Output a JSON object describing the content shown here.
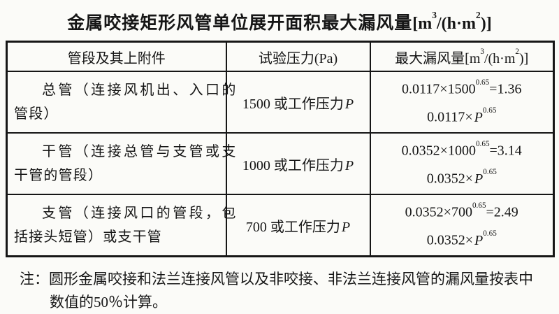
{
  "page": {
    "background": "#fbfbf8",
    "ink": "#161616"
  },
  "title": {
    "text": "金属咬接矩形风管单位展开面积最大漏风量",
    "unit": {
      "open": "[m",
      "sup1": "3",
      "mid": "/(h·m",
      "sup2": "2",
      "close": ")]"
    }
  },
  "table": {
    "headers": {
      "segment": "管段及其上附件",
      "pressure": "试验压力(Pa)",
      "leakage_prefix": "最大漏风量",
      "leakage_unit": {
        "open": "[m",
        "sup1": "3",
        "mid": "/(h·m",
        "sup2": "2",
        "close": ")]"
      }
    },
    "rows": [
      {
        "segment_line1": "总管（连接风机出、入口的",
        "segment_line2": "管段）",
        "pressure_prefix": "1500 或工作压力",
        "pressure_symbol": "P",
        "f1_base": "0.0117×1500",
        "f1_exp": "0.65",
        "f1_result": "=1.36",
        "f2_base": "0.0117×",
        "f2_symbol": "P",
        "f2_exp": "0.65"
      },
      {
        "segment_line1": "干管（连接总管与支管或支",
        "segment_line2": "干管的管段）",
        "pressure_prefix": "1000 或工作压力",
        "pressure_symbol": "P",
        "f1_base": "0.0352×1000",
        "f1_exp": "0.65",
        "f1_result": "=3.14",
        "f2_base": "0.0352×",
        "f2_symbol": "P",
        "f2_exp": "0.65"
      },
      {
        "segment_line1": "支管（连接风口的管段，包",
        "segment_line2": "括接头短管）或支干管",
        "pressure_prefix": "700 或工作压力",
        "pressure_symbol": "P",
        "f1_base": "0.0352×700",
        "f1_exp": "0.65",
        "f1_result": "=2.49",
        "f2_base": "0.0352×",
        "f2_symbol": "P",
        "f2_exp": "0.65"
      }
    ]
  },
  "note": {
    "label": "注：",
    "line1": "圆形金属咬接和法兰连接风管以及非咬接、非法兰连接风管的漏风量按表中",
    "line2": "数值的50％计算。"
  }
}
